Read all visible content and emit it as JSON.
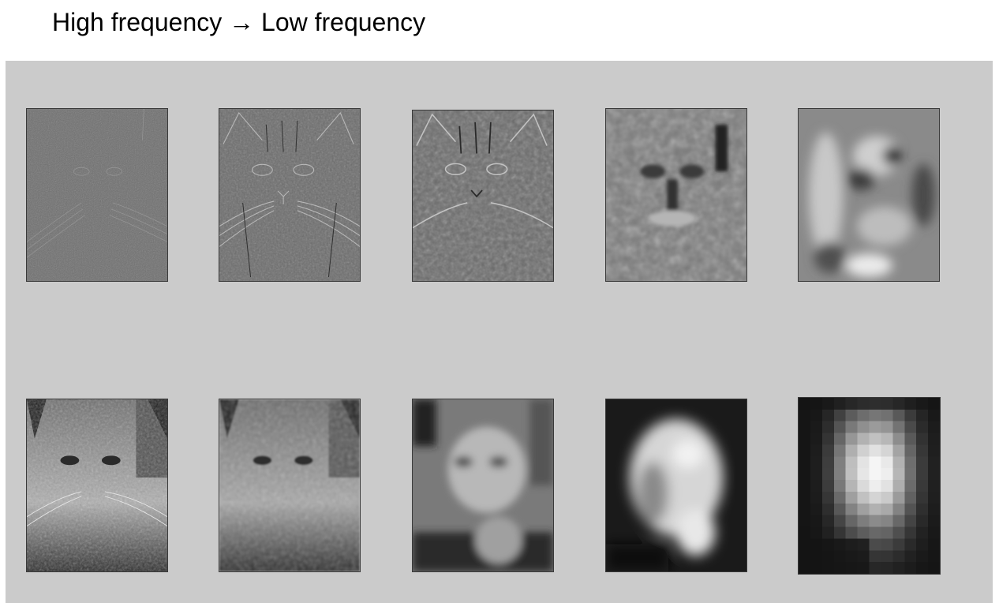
{
  "header": {
    "title": "High frequency → Low frequency"
  },
  "panels": {
    "top_row": [
      {
        "name": "cat-bandpass-level-1"
      },
      {
        "name": "cat-bandpass-level-2"
      },
      {
        "name": "cat-bandpass-level-3"
      },
      {
        "name": "cat-bandpass-level-4"
      },
      {
        "name": "cat-bandpass-level-5"
      }
    ],
    "bottom_row": [
      {
        "name": "cat-lowpass-level-1"
      },
      {
        "name": "cat-lowpass-level-2"
      },
      {
        "name": "cat-lowpass-level-3"
      },
      {
        "name": "cat-lowpass-level-4"
      },
      {
        "name": "cat-lowpass-level-5"
      }
    ]
  },
  "colors": {
    "panel_background": "#cbcbcb",
    "page_background": "#ffffff",
    "text": "#000000"
  }
}
